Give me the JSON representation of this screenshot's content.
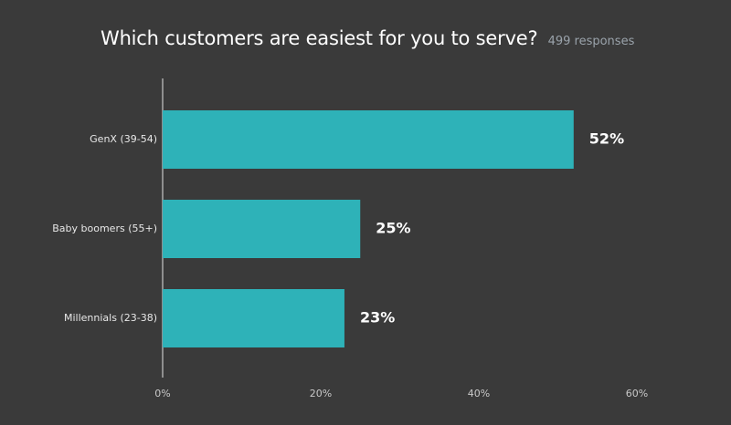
{
  "chart_data": {
    "type": "bar",
    "orientation": "horizontal",
    "title": "Which customers are easiest for you to serve?",
    "subtitle": "499 responses",
    "categories": [
      "GenX (39-54)",
      "Baby boomers (55+)",
      "Millennials (23-38)"
    ],
    "values": [
      52,
      25,
      23
    ],
    "value_labels": [
      "52%",
      "25%",
      "23%"
    ],
    "xlim": [
      0,
      60
    ],
    "x_ticks": [
      0,
      20,
      40,
      60
    ],
    "x_tick_labels": [
      "0%",
      "20%",
      "40%",
      "60%"
    ],
    "grid": false,
    "legend": "none",
    "colors": {
      "bar": "#2eb2b8",
      "background": "#3a3a3a",
      "axis": "#bdbdbd"
    }
  }
}
